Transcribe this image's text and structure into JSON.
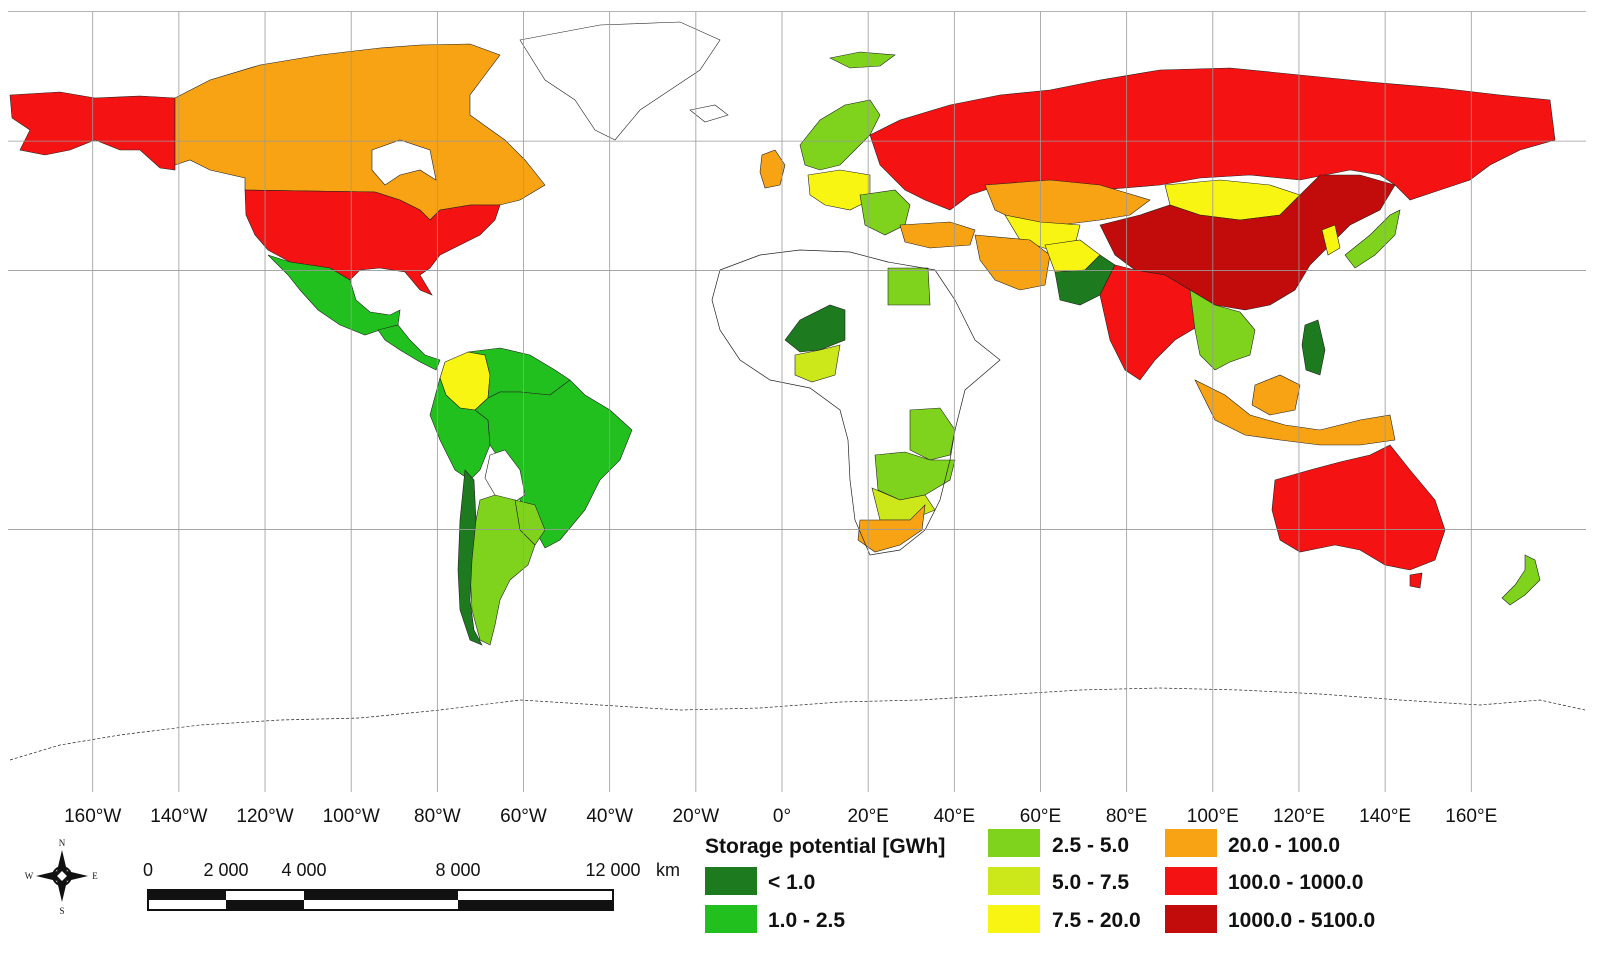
{
  "map": {
    "longitude_labels": [
      "160°W",
      "140°W",
      "120°W",
      "100°W",
      "80°W",
      "60°W",
      "40°W",
      "20°W",
      "0°",
      "20°E",
      "40°E",
      "60°E",
      "80°E",
      "100°E",
      "120°E",
      "140°E",
      "160°E"
    ],
    "longitudes": [
      -160,
      -140,
      -120,
      -100,
      -80,
      -60,
      -40,
      -20,
      0,
      20,
      40,
      60,
      80,
      100,
      120,
      140,
      160
    ],
    "parallels": [
      45,
      30,
      15,
      -15
    ]
  },
  "legend": {
    "title": "Storage potential [GWh]",
    "classes": [
      {
        "label": "< 1.0",
        "color": "#1e7a1e"
      },
      {
        "label": "1.0 - 2.5",
        "color": "#22c01e"
      },
      {
        "label": "2.5 - 5.0",
        "color": "#7fd31c"
      },
      {
        "label": "5.0 - 7.5",
        "color": "#cde81a"
      },
      {
        "label": "7.5 - 20.0",
        "color": "#f8f512"
      },
      {
        "label": "20.0 - 100.0",
        "color": "#f7a314"
      },
      {
        "label": "100.0 - 1000.0",
        "color": "#f51212"
      },
      {
        "label": "1000.0 - 5100.0",
        "color": "#c20c0c"
      }
    ]
  },
  "scale_bar": {
    "labels": [
      "0",
      "2 000",
      "4 000",
      "8 000",
      "12 000"
    ],
    "unit": "km"
  },
  "compass": {
    "n": "N",
    "s": "S",
    "e": "E",
    "w": "W"
  }
}
